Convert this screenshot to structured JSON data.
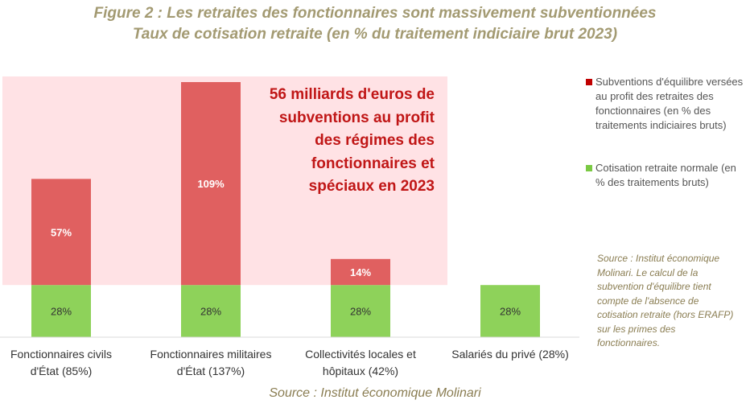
{
  "title": "Figure 2 : Les retraites des fonctionnaires sont massivement subventionnées",
  "subtitle": "Taux de cotisation retraite (en % du traitement indiciaire brut 2023)",
  "annotation": "56 milliards d'euros de subventions au profit des régimes des fonctionnaires et spéciaux en 2023",
  "legend": {
    "subsidy": "Subventions d'équilibre versées au profit des retraites des fonctionnaires (en % des traitements indiciaires bruts)",
    "normal": "Cotisation retraite normale (en % des traitements bruts)"
  },
  "note": "Source : Institut économique Molinari. Le calcul de la subvention d'équilibre tient compte de l'absence de cotisation retraite (hors ERAFP) sur les primes des fonctionnaires.",
  "source": "Source : Institut économique Molinari",
  "colors": {
    "subsidy": "#e06060",
    "subsidy_legend": "#c00000",
    "normal": "#8ed25a",
    "normal_legend": "#7ac943",
    "highlight_bg": "#ffe2e5",
    "annotation": "#c01616",
    "title": "#a39a72"
  },
  "chart_data": {
    "type": "bar",
    "stacked": true,
    "categories": [
      [
        "Fonctionnaires civils",
        "d'État (85%)"
      ],
      [
        "Fonctionnaires militaires",
        "d'État (137%)"
      ],
      [
        "Collectivités locales et",
        "hôpitaux (42%)"
      ],
      [
        "Salariés du privé (28%)"
      ]
    ],
    "series": [
      {
        "name": "Cotisation retraite normale",
        "values": [
          28,
          28,
          28,
          28
        ],
        "labels": [
          "28%",
          "28%",
          "28%",
          "28%"
        ]
      },
      {
        "name": "Subventions d'équilibre",
        "values": [
          57,
          109,
          14,
          0
        ],
        "labels": [
          "57%",
          "109%",
          "14%",
          ""
        ]
      }
    ],
    "ylim": [
      0,
      137
    ]
  }
}
